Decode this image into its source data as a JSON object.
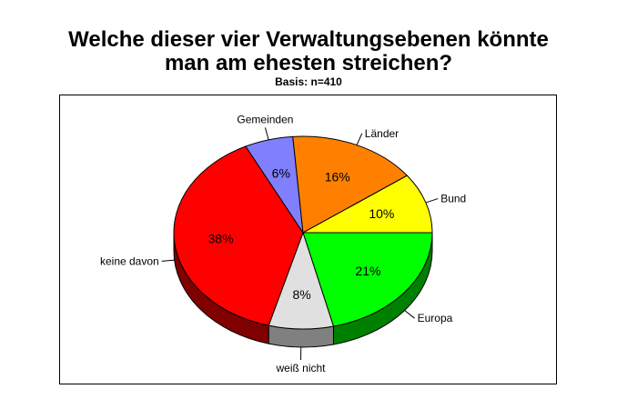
{
  "chart_data": {
    "type": "pie",
    "title": "Welche dieser vier Verwaltungsebenen könnte man am ehesten streichen?",
    "title_lines": [
      "Welche dieser vier Verwaltungsebenen könnte",
      "man am ehesten streichen?"
    ],
    "subtitle": "Basis: n=410",
    "slices": [
      {
        "label": "Europa",
        "value": 21,
        "value_label": "21%",
        "color": "#00ff00",
        "shade": "#008000"
      },
      {
        "label": "weiß nicht",
        "value": 8,
        "value_label": "8%",
        "color": "#e0e0e0",
        "shade": "#808080"
      },
      {
        "label": "keine davon",
        "value": 38,
        "value_label": "38%",
        "color": "#ff0000",
        "shade": "#800000"
      },
      {
        "label": "Gemeinden",
        "value": 6,
        "value_label": "6%",
        "color": "#8080ff",
        "shade": "#404080"
      },
      {
        "label": "Länder",
        "value": 16,
        "value_label": "16%",
        "color": "#ff8000",
        "shade": "#804000"
      },
      {
        "label": "Bund",
        "value": 10,
        "value_label": "10%",
        "color": "#ffff00",
        "shade": "#808000"
      }
    ],
    "legend": "none",
    "style": "3d"
  }
}
